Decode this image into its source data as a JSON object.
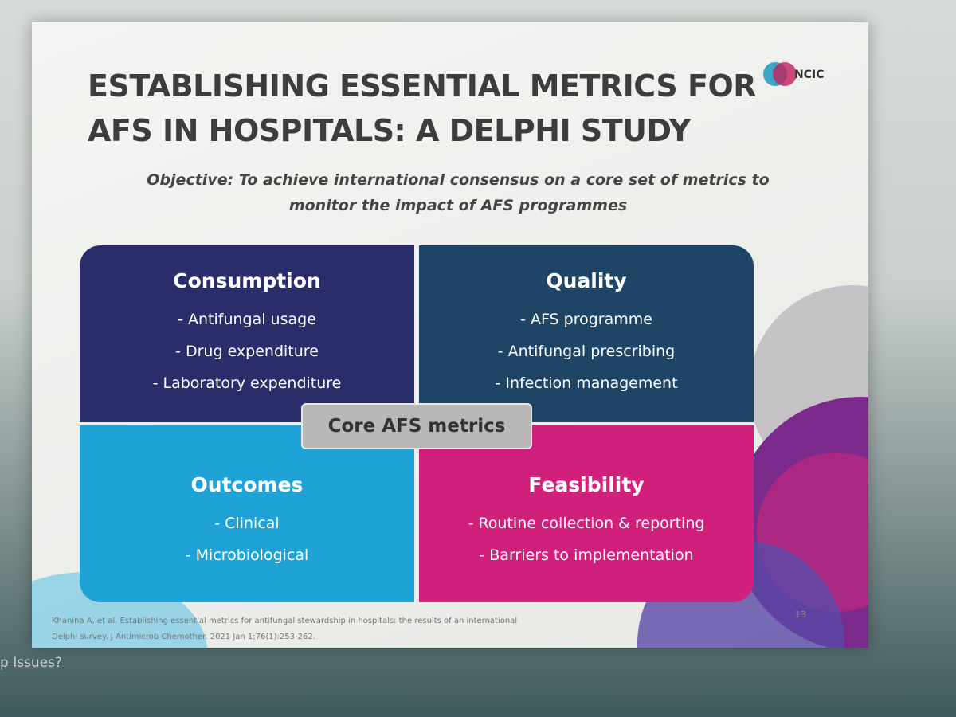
{
  "slide": {
    "title_lines": [
      "ESTABLISHING ESSENTIAL METRICS FOR",
      "AFS IN HOSPITALS: A DELPHI STUDY"
    ],
    "logo": "NCIC",
    "objective_label": "Objective:",
    "objective_lines": [
      "To achieve international consensus on a core set of metrics to",
      "monitor the impact of AFS programmes"
    ],
    "quadrants": [
      {
        "title": "Consumption",
        "items": [
          "- Antifungal usage",
          "- Drug expenditure",
          "- Laboratory expenditure"
        ]
      },
      {
        "title": "Quality",
        "items": [
          "- AFS programme",
          "- Antifungal prescribing",
          "- Infection management"
        ]
      },
      {
        "title": "Outcomes",
        "items": [
          "- Clinical",
          "- Microbiological"
        ]
      },
      {
        "title": "Feasibility",
        "items": [
          "- Routine collection & reporting",
          "- Barriers to implementation"
        ]
      }
    ],
    "center_label": "Core AFS metrics",
    "citation_lines": [
      "Khanina A, et al. Establishing essential metrics for antifungal stewardship in hospitals: the results of an international",
      "Delphi survey. J Antimicrob Chemother. 2021 Jan 1;76(1):253-262."
    ],
    "page_number": "13"
  },
  "background": {
    "partial_text": "p Issues?"
  }
}
